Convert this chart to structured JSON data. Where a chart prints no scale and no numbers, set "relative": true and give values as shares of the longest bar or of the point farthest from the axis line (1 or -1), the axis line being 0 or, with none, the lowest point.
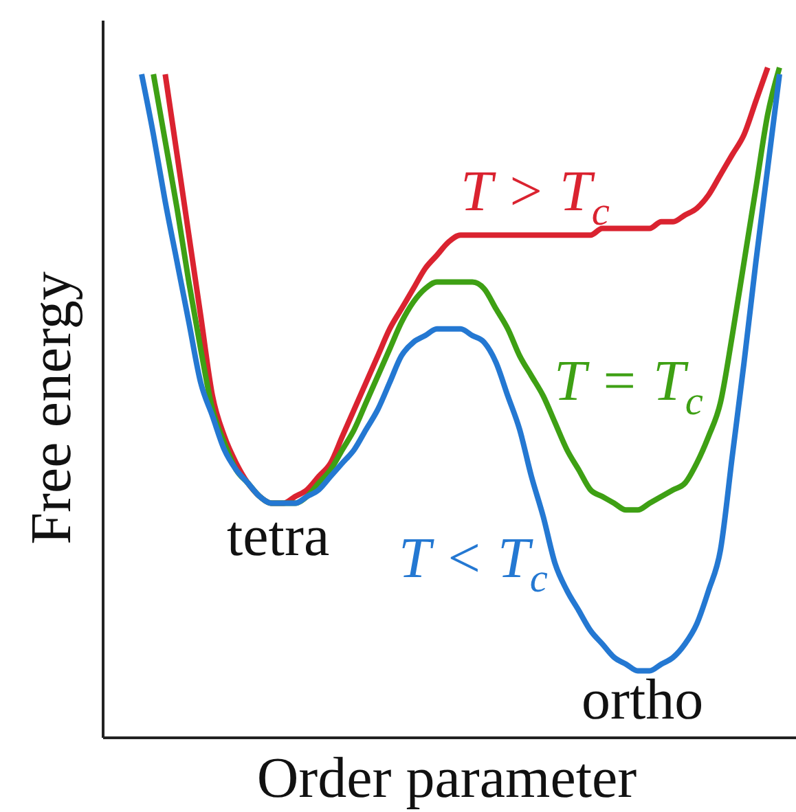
{
  "chart_data": {
    "type": "line",
    "relative": true,
    "xlabel": "Order parameter",
    "ylabel": "Free energy",
    "categories": [
      null,
      null,
      null,
      null,
      null,
      null,
      null,
      null,
      null,
      null,
      null,
      null,
      null,
      null,
      null,
      null,
      null,
      null,
      null,
      null,
      null,
      null,
      null,
      null,
      null,
      null,
      null,
      null,
      null,
      null,
      null,
      null,
      null,
      null,
      null,
      null,
      null,
      null,
      null,
      null,
      null,
      null,
      null,
      null,
      null,
      null,
      null,
      null,
      null,
      null,
      null,
      null,
      null,
      null,
      null
    ],
    "series": [
      {
        "name": "T > T$_{c}$",
        "color": "#da2330",
        "values": [
          null,
          null,
          0.99,
          0.87,
          0.75,
          0.63,
          0.51,
          0.45,
          0.41,
          0.38,
          0.36,
          0.35,
          0.35,
          0.36,
          0.37,
          0.39,
          0.41,
          0.45,
          0.49,
          0.53,
          0.57,
          0.61,
          0.64,
          0.67,
          0.7,
          0.72,
          0.74,
          0.75,
          0.75,
          0.75,
          0.75,
          0.75,
          0.75,
          0.75,
          0.75,
          0.75,
          0.75,
          0.75,
          0.75,
          0.76,
          0.76,
          0.76,
          0.76,
          0.76,
          0.77,
          0.77,
          0.78,
          0.79,
          0.81,
          0.84,
          0.87,
          0.9,
          0.95,
          1.0,
          null
        ]
      },
      {
        "name": "T = T$_{c}$",
        "color": "#3ea014",
        "values": [
          null,
          0.99,
          0.89,
          0.79,
          0.68,
          0.58,
          0.49,
          0.44,
          0.4,
          0.38,
          0.36,
          0.35,
          0.35,
          0.35,
          0.36,
          0.38,
          0.4,
          0.43,
          0.46,
          0.5,
          0.54,
          0.58,
          0.62,
          0.65,
          0.67,
          0.68,
          0.68,
          0.68,
          0.68,
          0.67,
          0.64,
          0.61,
          0.57,
          0.54,
          0.51,
          0.47,
          0.43,
          0.4,
          0.37,
          0.36,
          0.35,
          0.34,
          0.34,
          0.35,
          0.36,
          0.37,
          0.38,
          0.41,
          0.45,
          0.5,
          0.6,
          0.71,
          0.82,
          0.93,
          1.0
        ]
      },
      {
        "name": "T < T$_{c}$",
        "color": "#2478d2",
        "values": [
          0.99,
          0.9,
          0.8,
          0.71,
          0.62,
          0.53,
          0.48,
          0.43,
          0.4,
          0.38,
          0.36,
          0.35,
          0.35,
          0.35,
          0.36,
          0.37,
          0.39,
          0.41,
          0.43,
          0.46,
          0.49,
          0.53,
          0.57,
          0.59,
          0.6,
          0.61,
          0.61,
          0.61,
          0.6,
          0.59,
          0.56,
          0.51,
          0.46,
          0.39,
          0.33,
          0.26,
          0.22,
          0.19,
          0.16,
          0.14,
          0.12,
          0.11,
          0.1,
          0.1,
          0.11,
          0.12,
          0.14,
          0.17,
          0.22,
          0.28,
          0.42,
          0.56,
          0.71,
          0.85,
          0.99
        ]
      }
    ],
    "annotations": [
      "tetra",
      "ortho"
    ]
  }
}
